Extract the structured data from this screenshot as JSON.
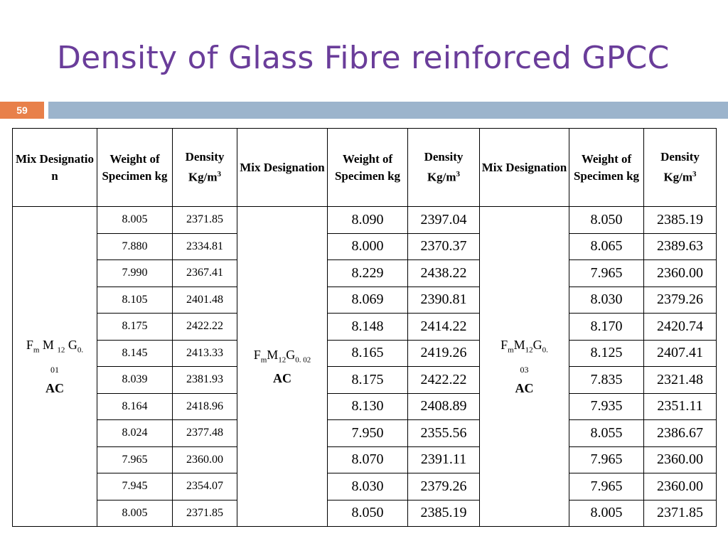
{
  "title": "Density of Glass Fibre reinforced GPCC",
  "slide_number": "59",
  "headers": {
    "mix_1": "Mix Designatio n",
    "mix": "Mix Designation",
    "weight": "Weight of Specimen kg",
    "density": "Density Kg/m",
    "density_exp": "3"
  },
  "mixes": [
    {
      "f": "F",
      "f_sub": "m",
      "m": " M ",
      "m_sub": "12",
      "g": " G",
      "g_sub": "0.",
      "sup": "01",
      "ac": "AC"
    },
    {
      "f": "F",
      "f_sub": "m",
      "m": "M",
      "m_sub": "12",
      "g": "G",
      "g_sub": "0. 02",
      "sup": "",
      "ac": "AC"
    },
    {
      "f": "F",
      "f_sub": "m",
      "m": "M",
      "m_sub": "12",
      "g": "G",
      "g_sub": "0.",
      "sup": "03",
      "ac": "AC"
    }
  ],
  "rows": [
    [
      "8.005",
      "2371.85",
      "8.090",
      "2397.04",
      "8.050",
      "2385.19"
    ],
    [
      "7.880",
      "2334.81",
      "8.000",
      "2370.37",
      "8.065",
      "2389.63"
    ],
    [
      "7.990",
      "2367.41",
      "8.229",
      "2438.22",
      "7.965",
      "2360.00"
    ],
    [
      "8.105",
      "2401.48",
      "8.069",
      "2390.81",
      "8.030",
      "2379.26"
    ],
    [
      "8.175",
      "2422.22",
      "8.148",
      "2414.22",
      "8.170",
      "2420.74"
    ],
    [
      "8.145",
      "2413.33",
      "8.165",
      "2419.26",
      "8.125",
      "2407.41"
    ],
    [
      "8.039",
      "2381.93",
      "8.175",
      "2422.22",
      "7.835",
      "2321.48"
    ],
    [
      "8.164",
      "2418.96",
      "8.130",
      "2408.89",
      "7.935",
      "2351.11"
    ],
    [
      "8.024",
      "2377.48",
      "7.950",
      "2355.56",
      "8.055",
      "2386.67"
    ],
    [
      "7.965",
      "2360.00",
      "8.070",
      "2391.11",
      "7.965",
      "2360.00"
    ],
    [
      "7.945",
      "2354.07",
      "8.030",
      "2379.26",
      "7.965",
      "2360.00"
    ],
    [
      "8.005",
      "2371.85",
      "8.050",
      "2385.19",
      "8.005",
      "2371.85"
    ]
  ],
  "colors": {
    "title": "#6a3d9a",
    "slide_number_bg": "#e8804a",
    "bar": "#9cb4cc"
  }
}
